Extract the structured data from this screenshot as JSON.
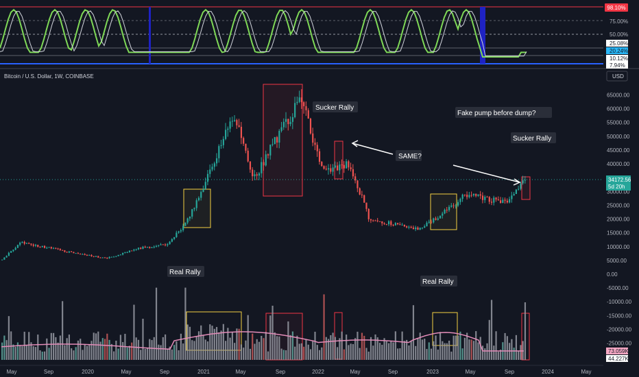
{
  "symbol_title": "Bitcoin / U.S. Dollar, 1W, COINBASE",
  "currency_button": "USD",
  "oscillator": {
    "upper_badge": "98.10%",
    "ticks": [
      "75.00%",
      "50.00%",
      "25.08%",
      "20.24%",
      "10.12%",
      "7.94%"
    ],
    "levels": [
      98.1,
      75,
      50,
      25.08,
      20.24,
      10.12,
      7.94
    ]
  },
  "price_axis": {
    "ticks": [
      "65000.00",
      "60000.00",
      "55000.00",
      "50000.00",
      "45000.00",
      "40000.00",
      "35000.00",
      "30000.00",
      "25000.00",
      "20000.00",
      "15000.00",
      "10000.00",
      "5000.00",
      "0.00",
      "-5000.00",
      "-10000.00",
      "-15000.00",
      "-20000.00",
      "-25000.00"
    ],
    "last_price": "34172.56",
    "countdown": "5d 20h",
    "last_price_color": "#26a69a"
  },
  "volume": {
    "badge_ma": "73.059K",
    "badge_vol": "44.227K",
    "ma_color": "#e38cb8",
    "bar_color": "#9598a1"
  },
  "time_axis": {
    "labels": [
      "May",
      "Sep",
      "2020",
      "May",
      "Sep",
      "2021",
      "May",
      "Sep",
      "2022",
      "May",
      "Sep",
      "2023",
      "May",
      "Sep",
      "2024",
      "May"
    ]
  },
  "annotations": {
    "sucker_rally_1": "Sucker Rally",
    "fake_pump": "Fake pump before dump?",
    "sucker_rally_2": "Sucker Rally",
    "same": "SAME?",
    "real_rally_1": "Real Rally",
    "real_rally_2": "Real Rally"
  },
  "colors": {
    "up": "#26a69a",
    "down": "#ef5350",
    "red_box": "#f23645",
    "yellow_box": "#f5d142",
    "oscillator_line": "#d1d4dc",
    "blue_band": "#1e22c4"
  },
  "chart_data": {
    "type": "candlestick",
    "title": "Bitcoin / U.S. Dollar, 1W, COINBASE",
    "interval": "1W",
    "y_range": [
      -27000,
      68000
    ],
    "approx_weekly_close_path": [
      {
        "date": "2019-04",
        "price": 5000
      },
      {
        "date": "2019-06",
        "price": 11500
      },
      {
        "date": "2019-09",
        "price": 9500
      },
      {
        "date": "2019-12",
        "price": 7200
      },
      {
        "date": "2020-03",
        "price": 5800
      },
      {
        "date": "2020-06",
        "price": 9300
      },
      {
        "date": "2020-09",
        "price": 10700
      },
      {
        "date": "2020-11",
        "price": 18000
      },
      {
        "date": "2021-01",
        "price": 33000
      },
      {
        "date": "2021-04",
        "price": 58000
      },
      {
        "date": "2021-06",
        "price": 34000
      },
      {
        "date": "2021-08",
        "price": 47000
      },
      {
        "date": "2021-11",
        "price": 64000
      },
      {
        "date": "2022-01",
        "price": 38000
      },
      {
        "date": "2022-04",
        "price": 40000
      },
      {
        "date": "2022-06",
        "price": 20000
      },
      {
        "date": "2022-11",
        "price": 16500
      },
      {
        "date": "2023-02",
        "price": 23000
      },
      {
        "date": "2023-04",
        "price": 29000
      },
      {
        "date": "2023-08",
        "price": 26000
      },
      {
        "date": "2023-10",
        "price": 34172.56
      }
    ],
    "last_close": 34172.56
  }
}
